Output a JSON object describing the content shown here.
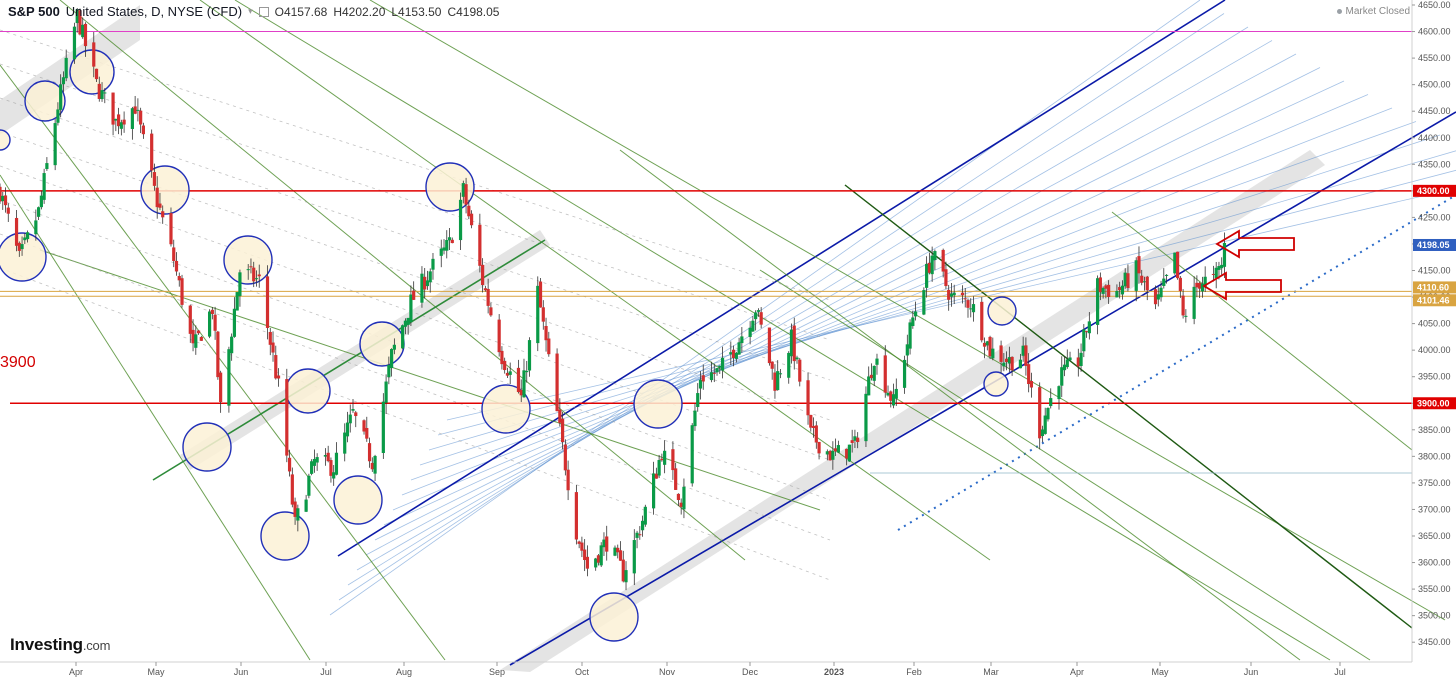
{
  "header": {
    "symbol": "S&P 500",
    "meta": "United States, D, NYSE (CFD)",
    "open": "O4157.68",
    "high": "H4202.20",
    "low": "L4153.50",
    "close": "C4198.05"
  },
  "status": "Market Closed",
  "logo": {
    "brand": "Investing",
    "suffix": ".com"
  },
  "level_label": "3900",
  "colors": {
    "up": "#0a9a47",
    "down": "#d32f2f",
    "support_red": "#e00000",
    "magenta": "#e040c8",
    "orange": "#d9a441",
    "channel_blue": "#0b1aa8",
    "fan_blue": "#5a8fd0",
    "fan_green": "#4a8a2a",
    "circle_fill": "#fbf1d6",
    "circle_stroke": "#2130b8",
    "band_grey": "#d9d9d9"
  },
  "chart_data": {
    "type": "candlestick",
    "title": "S&P 500",
    "ylim": [
      3405,
      4660
    ],
    "y_ticks": [
      3450,
      3500,
      3550,
      3600,
      3650,
      3700,
      3750,
      3800,
      3850,
      3900,
      3950,
      4000,
      4050,
      4100,
      4150,
      4200,
      4250,
      4300,
      4350,
      4400,
      4450,
      4500,
      4550,
      4600,
      4650
    ],
    "x_ticks": [
      "Apr",
      "May",
      "Jun",
      "Jul",
      "Aug",
      "Sep",
      "Oct",
      "Nov",
      "Dec",
      "2023",
      "Feb",
      "Mar",
      "Apr",
      "May",
      "Jun",
      "Jul"
    ],
    "x_range": [
      "2022-03-01",
      "2023-07-26"
    ],
    "horizontal_levels": [
      {
        "value": 4600,
        "color": "#e040c8"
      },
      {
        "value": 4300,
        "color": "#e00000",
        "label": "4300.00"
      },
      {
        "value": 4110.6,
        "color": "#d9a441",
        "label": "4110.60"
      },
      {
        "value": 4101.46,
        "color": "#d9a441",
        "label": "4101.46"
      },
      {
        "value": 3900,
        "color": "#e00000",
        "label": "3900.00"
      }
    ],
    "last_price": {
      "value": 4198.05,
      "label": "4198.05"
    },
    "anchors": [
      [
        "2022-03-01",
        4300
      ],
      [
        "2022-03-08",
        4170
      ],
      [
        "2022-03-15",
        4260
      ],
      [
        "2022-03-22",
        4460
      ],
      [
        "2022-03-29",
        4630
      ],
      [
        "2022-04-05",
        4500
      ],
      [
        "2022-04-12",
        4430
      ],
      [
        "2022-04-19",
        4460
      ],
      [
        "2022-04-26",
        4300
      ],
      [
        "2022-05-03",
        4170
      ],
      [
        "2022-05-10",
        4000
      ],
      [
        "2022-05-17",
        4080
      ],
      [
        "2022-05-20",
        3890
      ],
      [
        "2022-05-27",
        4150
      ],
      [
        "2022-06-03",
        4130
      ],
      [
        "2022-06-10",
        3930
      ],
      [
        "2022-06-16",
        3670
      ],
      [
        "2022-06-23",
        3790
      ],
      [
        "2022-06-30",
        3780
      ],
      [
        "2022-07-07",
        3880
      ],
      [
        "2022-07-14",
        3790
      ],
      [
        "2022-07-21",
        3990
      ],
      [
        "2022-07-28",
        4090
      ],
      [
        "2022-08-04",
        4150
      ],
      [
        "2022-08-11",
        4200
      ],
      [
        "2022-08-16",
        4300
      ],
      [
        "2022-08-23",
        4130
      ],
      [
        "2022-08-30",
        3990
      ],
      [
        "2022-09-06",
        3910
      ],
      [
        "2022-09-12",
        4110
      ],
      [
        "2022-09-19",
        3880
      ],
      [
        "2022-09-26",
        3660
      ],
      [
        "2022-09-30",
        3590
      ],
      [
        "2022-10-07",
        3640
      ],
      [
        "2022-10-13",
        3580
      ],
      [
        "2022-10-20",
        3680
      ],
      [
        "2022-10-27",
        3810
      ],
      [
        "2022-11-03",
        3720
      ],
      [
        "2022-11-10",
        3950
      ],
      [
        "2022-11-17",
        3960
      ],
      [
        "2022-11-24",
        4020
      ],
      [
        "2022-11-30",
        4080
      ],
      [
        "2022-12-07",
        3940
      ],
      [
        "2022-12-13",
        4020
      ],
      [
        "2022-12-20",
        3840
      ],
      [
        "2022-12-28",
        3800
      ],
      [
        "2023-01-05",
        3820
      ],
      [
        "2023-01-12",
        3990
      ],
      [
        "2023-01-19",
        3900
      ],
      [
        "2023-01-26",
        4060
      ],
      [
        "2023-02-02",
        4180
      ],
      [
        "2023-02-09",
        4100
      ],
      [
        "2023-02-16",
        4090
      ],
      [
        "2023-02-23",
        4000
      ],
      [
        "2023-03-02",
        3980
      ],
      [
        "2023-03-07",
        3990
      ],
      [
        "2023-03-13",
        3850
      ],
      [
        "2023-03-20",
        3950
      ],
      [
        "2023-03-27",
        3980
      ],
      [
        "2023-04-03",
        4120
      ],
      [
        "2023-04-10",
        4110
      ],
      [
        "2023-04-17",
        4150
      ],
      [
        "2023-04-24",
        4080
      ],
      [
        "2023-05-01",
        4170
      ],
      [
        "2023-05-04",
        4060
      ],
      [
        "2023-05-10",
        4130
      ],
      [
        "2023-05-15",
        4130
      ],
      [
        "2023-05-18",
        4160
      ],
      [
        "2023-05-19",
        4198.05
      ]
    ],
    "annotations": [
      "circles at swing highs/lows",
      "red arrows at 4198 and 4110",
      "parallel trend channels and pitchfork lines"
    ]
  }
}
